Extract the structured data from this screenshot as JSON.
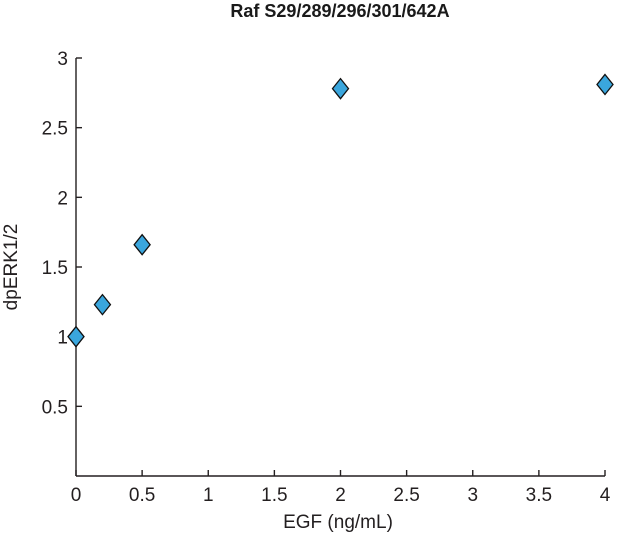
{
  "chart_data": {
    "type": "scatter",
    "title": "Raf S29/289/296/301/642A",
    "xlabel": "EGF (ng/mL)",
    "ylabel": "dpERK1/2",
    "xlim": [
      0,
      4
    ],
    "ylim": [
      0,
      3
    ],
    "x_ticks": [
      "0",
      "0.5",
      "1",
      "1.5",
      "2",
      "2.5",
      "3",
      "3.5",
      "4"
    ],
    "y_ticks": [
      "0.5",
      "1",
      "1.5",
      "2",
      "2.5",
      "3"
    ],
    "grid": false,
    "marker": "diamond",
    "marker_color": "#3aa6dd",
    "x": [
      0,
      0.2,
      0.5,
      2,
      4
    ],
    "y": [
      1.0,
      1.23,
      1.66,
      2.78,
      2.81
    ]
  }
}
